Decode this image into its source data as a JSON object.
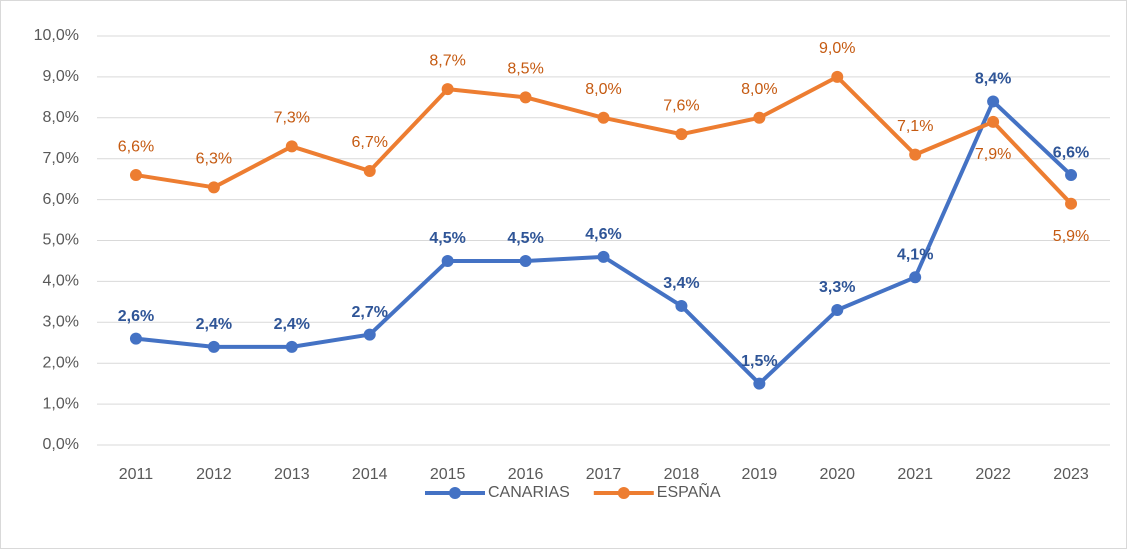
{
  "chart_data": {
    "type": "line",
    "categories": [
      "2011",
      "2012",
      "2013",
      "2014",
      "2015",
      "2016",
      "2017",
      "2018",
      "2019",
      "2020",
      "2021",
      "2022",
      "2023"
    ],
    "series": [
      {
        "name": "CANARIAS",
        "color": "#4472c4",
        "values": [
          2.6,
          2.4,
          2.4,
          2.7,
          4.5,
          4.5,
          4.6,
          3.4,
          1.5,
          3.3,
          4.1,
          8.4,
          6.6
        ],
        "value_labels": [
          "2,6%",
          "2,4%",
          "2,4%",
          "2,7%",
          "4,5%",
          "4,5%",
          "4,6%",
          "3,4%",
          "1,5%",
          "3,3%",
          "4,1%",
          "8,4%",
          "6,6%"
        ]
      },
      {
        "name": "ESPAÑA",
        "color": "#ed7d31",
        "values": [
          6.6,
          6.3,
          7.3,
          6.7,
          8.7,
          8.5,
          8.0,
          7.6,
          8.0,
          9.0,
          7.1,
          7.9,
          5.9
        ],
        "value_labels": [
          "6,6%",
          "6,3%",
          "7,3%",
          "6,7%",
          "8,7%",
          "8,5%",
          "8,0%",
          "7,6%",
          "8,0%",
          "9,0%",
          "7,1%",
          "7,9%",
          "5,9%"
        ]
      }
    ],
    "ylim": [
      0,
      10
    ],
    "yticks": [
      {
        "value": 0,
        "label": "0,0%"
      },
      {
        "value": 1,
        "label": "1,0%"
      },
      {
        "value": 2,
        "label": "2,0%"
      },
      {
        "value": 3,
        "label": "3,0%"
      },
      {
        "value": 4,
        "label": "4,0%"
      },
      {
        "value": 5,
        "label": "5,0%"
      },
      {
        "value": 6,
        "label": "6,0%"
      },
      {
        "value": 7,
        "label": "7,0%"
      },
      {
        "value": 8,
        "label": "8,0%"
      },
      {
        "value": 9,
        "label": "9,0%"
      },
      {
        "value": 10,
        "label": "10,0%"
      }
    ],
    "grid": true,
    "legend": "bottom"
  }
}
